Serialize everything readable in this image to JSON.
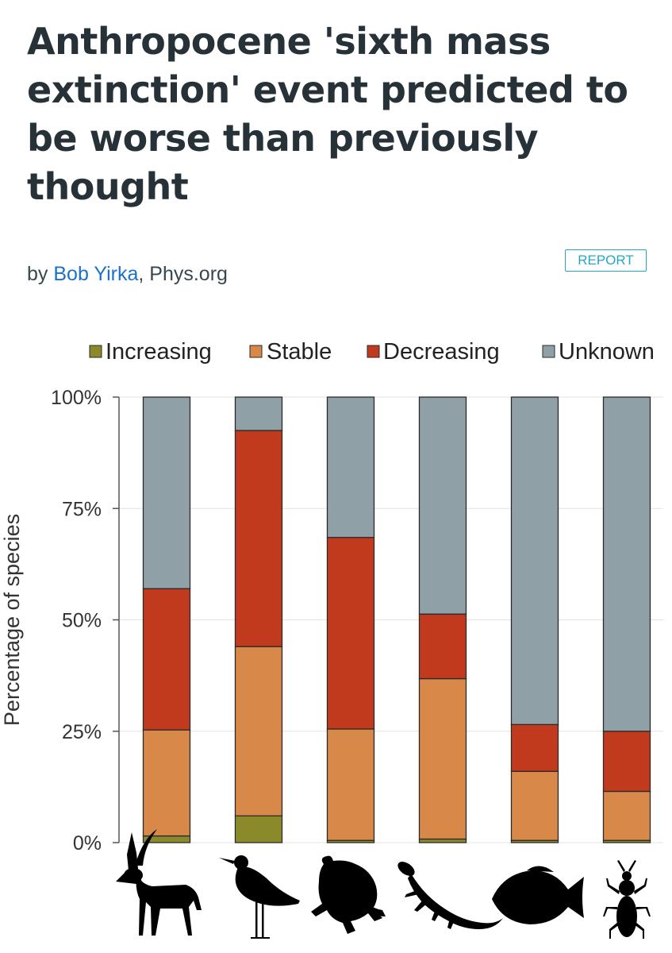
{
  "article": {
    "title": "Anthropocene 'sixth mass extinction' event predicted to be worse than previously thought",
    "byline_prefix": "by",
    "author": "Bob Yirka",
    "separator": ",",
    "source": "Phys.org",
    "report_label": "REPORT"
  },
  "colors": {
    "Increasing": "#8a8a2a",
    "Stable": "#d8894a",
    "Decreasing": "#c13a1e",
    "Unknown": "#8fa0a6",
    "link": "#1a73c9",
    "accent": "#26a6c6"
  },
  "chart_data": {
    "type": "bar",
    "stacked": true,
    "categories": [
      "mammal",
      "bird",
      "amphibian",
      "reptile",
      "fish",
      "insect"
    ],
    "category_icons": [
      "antelope-icon",
      "bird-icon",
      "frog-icon",
      "lizard-icon",
      "fish-icon",
      "beetle-icon"
    ],
    "series": [
      {
        "name": "Increasing",
        "values": [
          1.5,
          6,
          0.5,
          0.8,
          0.5,
          0.5
        ]
      },
      {
        "name": "Stable",
        "values": [
          23.8,
          38,
          25,
          36,
          15.5,
          11
        ]
      },
      {
        "name": "Decreasing",
        "values": [
          31.7,
          48.5,
          43,
          14.5,
          10.5,
          13.5
        ]
      },
      {
        "name": "Unknown",
        "values": [
          43,
          7.5,
          31.5,
          48.7,
          73.5,
          75
        ]
      }
    ],
    "title": "",
    "xlabel": "",
    "ylabel": "Percentage of species",
    "ylim": [
      0,
      100
    ],
    "yticks": [
      0,
      25,
      50,
      75,
      100
    ],
    "ytick_labels": [
      "0%",
      "25%",
      "50%",
      "75%",
      "100%"
    ],
    "legend": [
      "Increasing",
      "Stable",
      "Decreasing",
      "Unknown"
    ],
    "legend_position": "top",
    "grid": true
  }
}
